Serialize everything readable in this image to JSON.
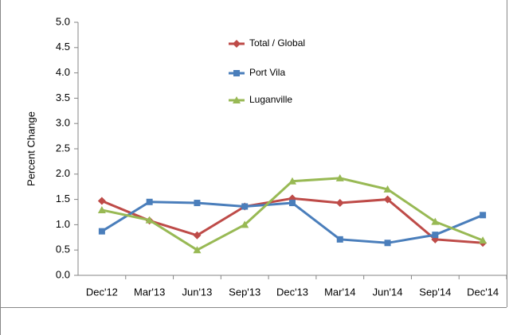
{
  "chart_data": {
    "type": "line",
    "y_label": "Percent Change",
    "categories": [
      "Dec'12",
      "Mar'13",
      "Jun'13",
      "Sep'13",
      "Dec'13",
      "Mar'14",
      "Jun'14",
      "Sep'14",
      "Dec'14"
    ],
    "series": [
      {
        "name": "Total / Global",
        "color": "#be4b48",
        "marker": "diamond",
        "values": [
          1.47,
          1.08,
          0.79,
          1.36,
          1.52,
          1.43,
          1.5,
          0.71,
          0.64
        ]
      },
      {
        "name": "Port Vila",
        "color": "#4a7ebb",
        "marker": "square",
        "values": [
          0.87,
          1.45,
          1.43,
          1.36,
          1.43,
          0.71,
          0.64,
          0.8,
          1.19
        ]
      },
      {
        "name": "Luganville",
        "color": "#98b954",
        "marker": "triangle",
        "values": [
          1.29,
          1.09,
          0.5,
          1.0,
          1.86,
          1.92,
          1.7,
          1.06,
          0.69
        ]
      }
    ],
    "ylim": [
      0,
      5
    ],
    "yticks": [
      {
        "value": 0,
        "label": "0.0"
      },
      {
        "value": 0.5,
        "label": "0.5"
      },
      {
        "value": 1,
        "label": "1.0"
      },
      {
        "value": 1.5,
        "label": "1.5"
      },
      {
        "value": 2,
        "label": "2.0"
      },
      {
        "value": 2.5,
        "label": "2.5"
      },
      {
        "value": 3,
        "label": "3.0"
      },
      {
        "value": 3.5,
        "label": "3.5"
      },
      {
        "value": 4,
        "label": "4.0"
      },
      {
        "value": 4.5,
        "label": "4.5"
      },
      {
        "value": 5,
        "label": "5.0"
      }
    ],
    "grid": false
  }
}
